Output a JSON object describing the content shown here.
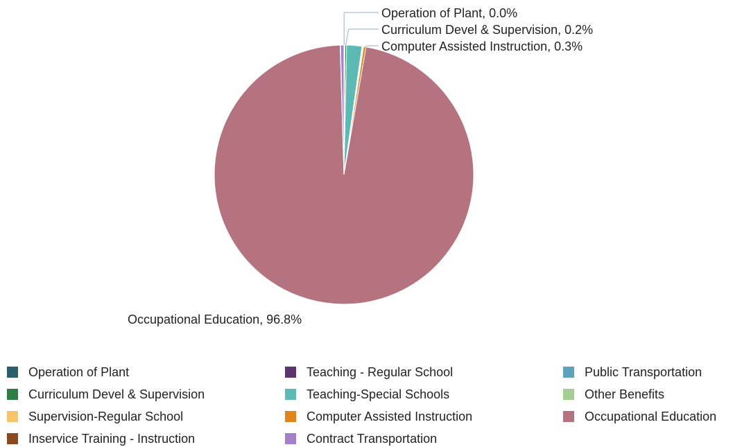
{
  "chart_data": {
    "type": "pie",
    "slices": [
      {
        "label": "Operation of Plant",
        "value": 0.04,
        "color": "#2a5f6b"
      },
      {
        "label": "Teaching - Regular School",
        "value": 0.03,
        "color": "#5b3470"
      },
      {
        "label": "Public Transportation",
        "value": 0.06,
        "color": "#5ea2bb"
      },
      {
        "label": "Curriculum Devel & Supervision",
        "value": 0.2,
        "color": "#2e7d44"
      },
      {
        "label": "Teaching-Special Schools",
        "value": 1.9,
        "color": "#5bbab3"
      },
      {
        "label": "Other Benefits",
        "value": 0.08,
        "color": "#a5cf92"
      },
      {
        "label": "Supervision-Regular School",
        "value": 0.12,
        "color": "#f5c46b"
      },
      {
        "label": "Computer Assisted Instruction",
        "value": 0.3,
        "color": "#e3841a"
      },
      {
        "label": "Occupational Education",
        "value": 96.8,
        "color": "#b5737f"
      },
      {
        "label": "Inservice Training - Instruction",
        "value": 0.05,
        "color": "#8a4a1e"
      },
      {
        "label": "Contract Transportation",
        "value": 0.42,
        "color": "#a47fcc"
      }
    ],
    "data_labels": [
      {
        "text": "Operation of Plant, 0.0%"
      },
      {
        "text": "Curriculum Devel & Supervision, 0.2%"
      },
      {
        "text": "Computer Assisted Instruction, 0.3%"
      },
      {
        "text": "Occupational Education, 96.8%"
      }
    ],
    "legend_position": "bottom"
  },
  "legend": {
    "items": [
      {
        "label": "Operation of Plant",
        "color": "#2a5f6b"
      },
      {
        "label": "Teaching - Regular School",
        "color": "#5b3470"
      },
      {
        "label": "Public Transportation",
        "color": "#5ea2bb"
      },
      {
        "label": "Curriculum Devel & Supervision",
        "color": "#2e7d44"
      },
      {
        "label": "Teaching-Special Schools",
        "color": "#5bbab3"
      },
      {
        "label": "Other Benefits",
        "color": "#a5cf92"
      },
      {
        "label": "Supervision-Regular School",
        "color": "#f5c46b"
      },
      {
        "label": "Computer Assisted Instruction",
        "color": "#e3841a"
      },
      {
        "label": "Occupational Education",
        "color": "#b5737f"
      },
      {
        "label": "Inservice Training - Instruction",
        "color": "#8a4a1e"
      },
      {
        "label": "Contract Transportation",
        "color": "#a47fcc"
      }
    ]
  }
}
